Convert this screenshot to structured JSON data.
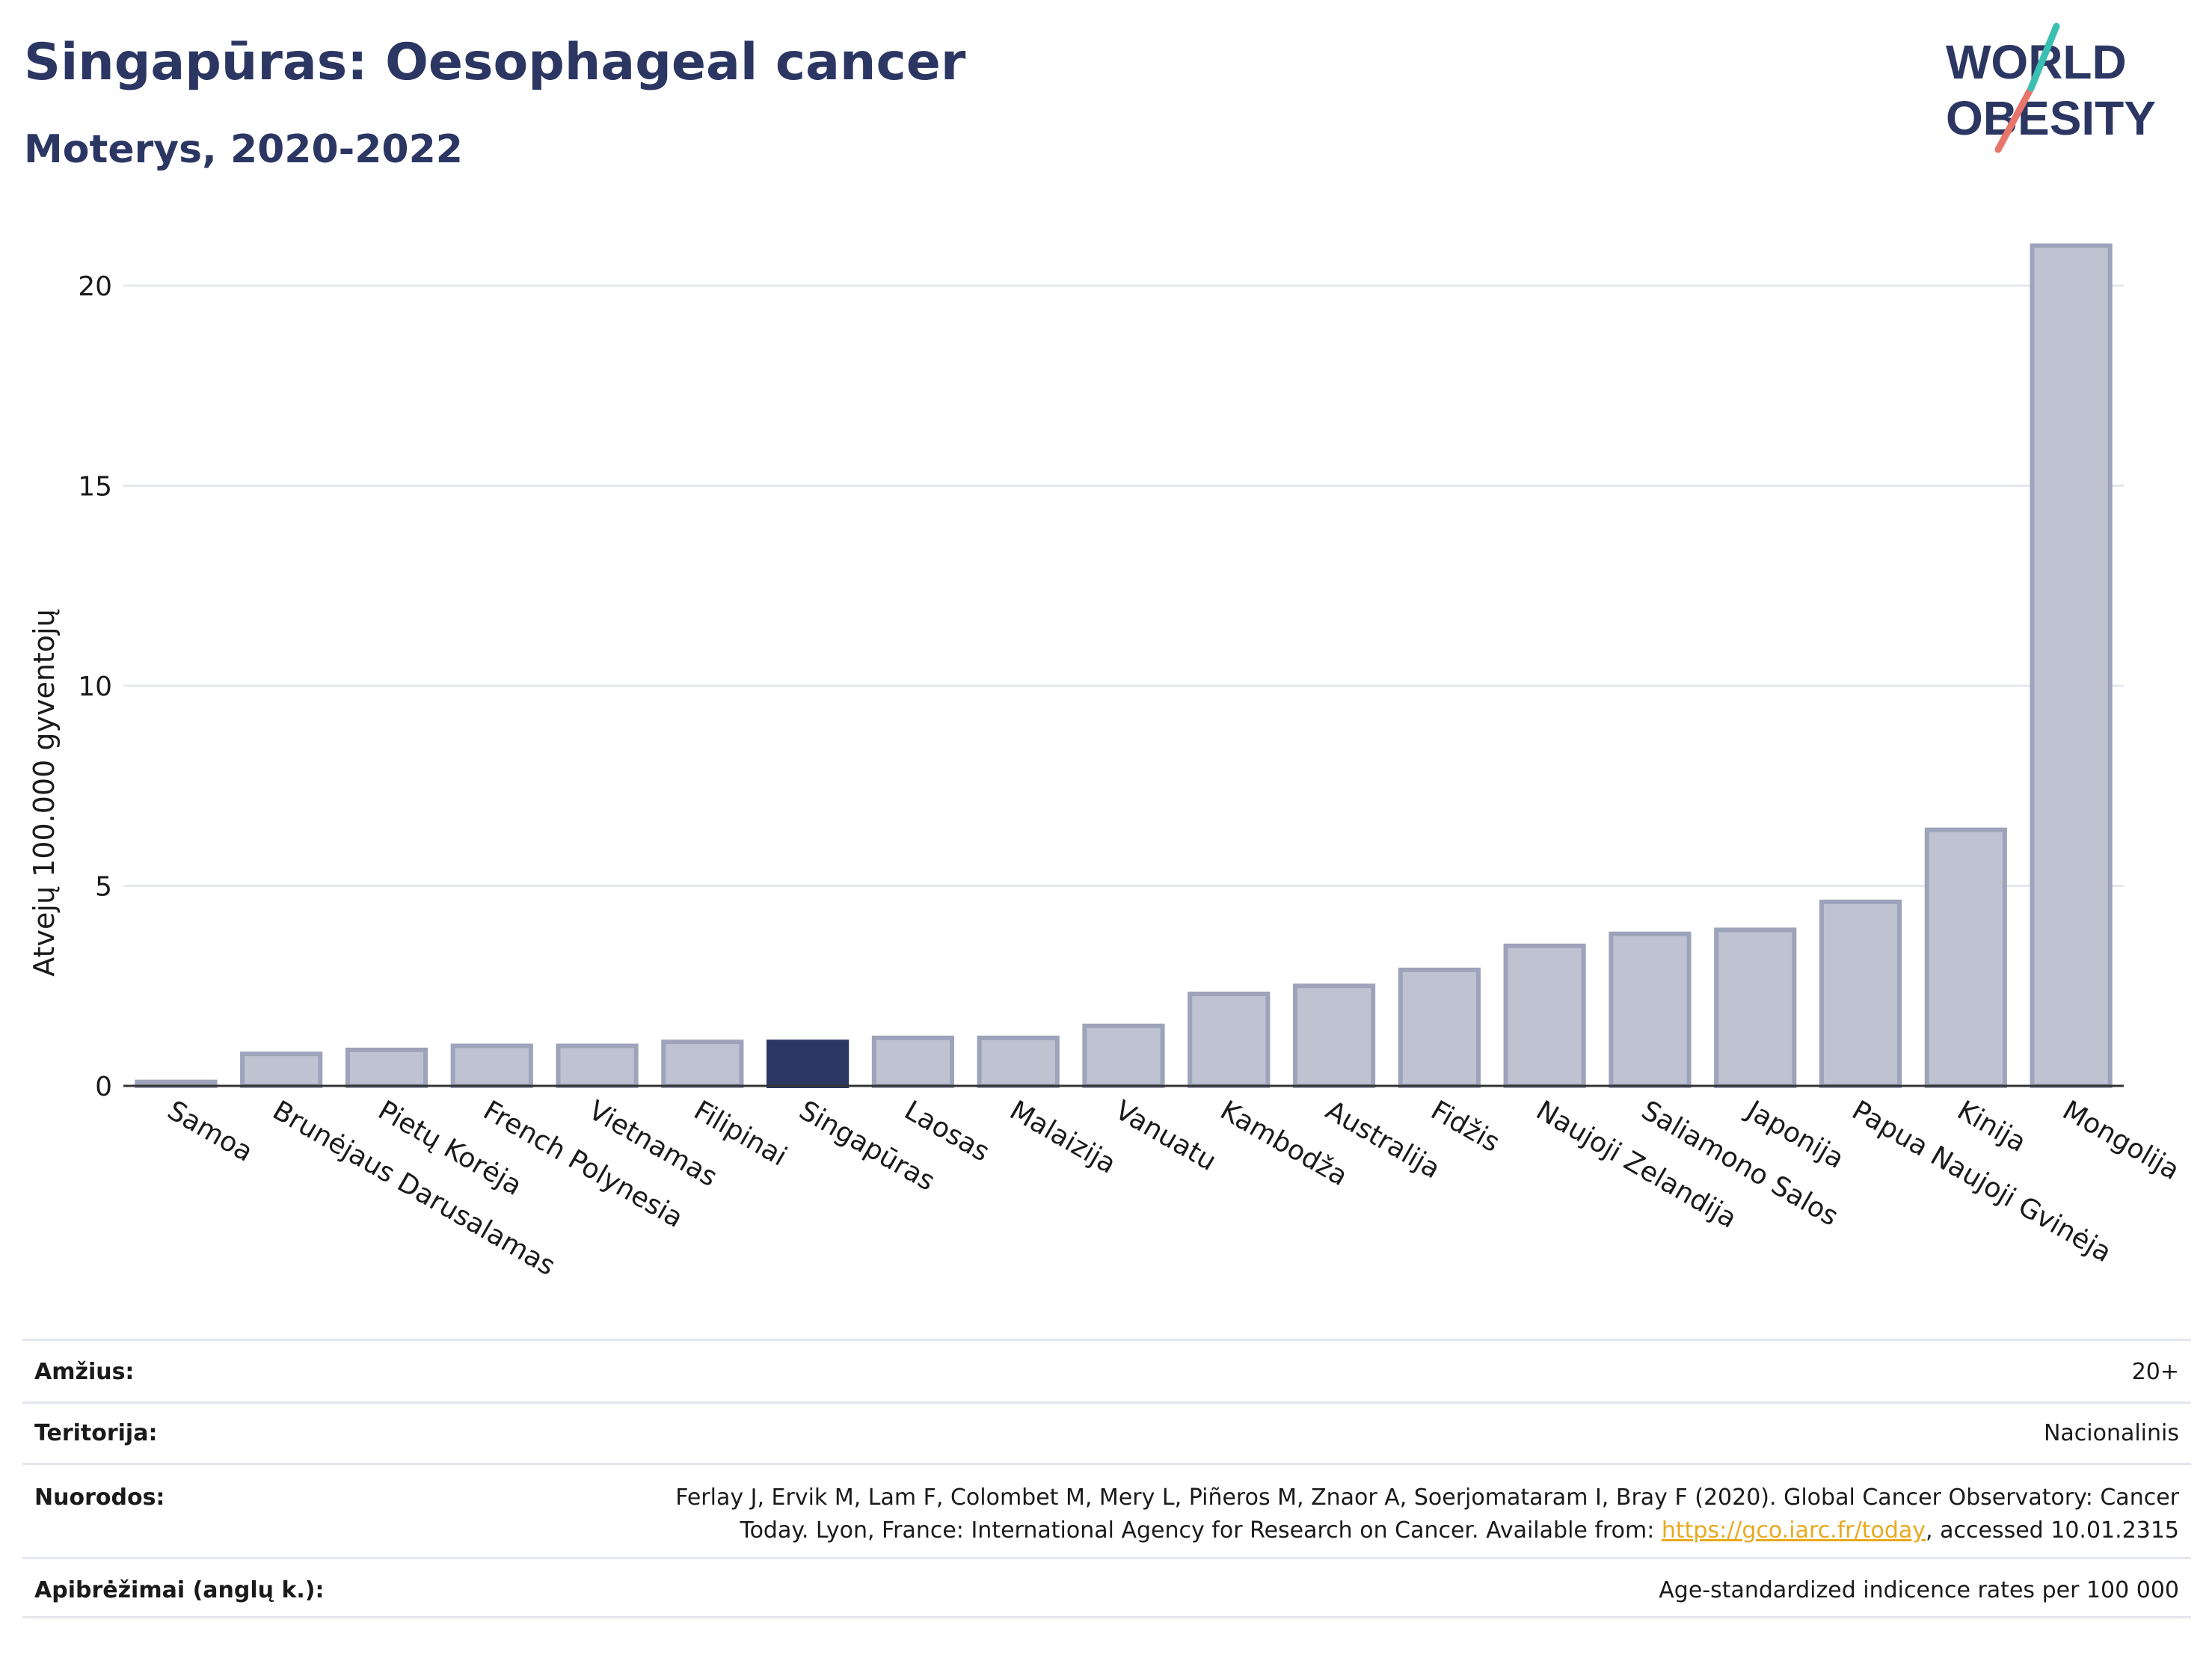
{
  "header": {
    "title": "Singapūras: Oesophageal cancer",
    "subtitle": "Moterys, 2020-2022"
  },
  "logo": {
    "line1": "WORLD",
    "line2": "OBESITY"
  },
  "colors": {
    "bar": "#bfc3d1",
    "bar_stroke": "#9da3ba",
    "highlight": "#2b3663",
    "title": "#2b3663"
  },
  "chart_data": {
    "type": "bar",
    "ylabel": "Atvejų 100.000 gyventojų",
    "ylim": [
      0,
      22
    ],
    "yticks": [
      0,
      5,
      10,
      15,
      20
    ],
    "categories": [
      "Samoa",
      "Brunėjaus Darusalamas",
      "Pietų Korėja",
      "French Polynesia",
      "Vietnamas",
      "Filipinai",
      "Singapūras",
      "Laosas",
      "Malaizija",
      "Vanuatu",
      "Kambodža",
      "Australija",
      "Fidžis",
      "Naujoji Zelandija",
      "Saliamono Salos",
      "Japonija",
      "Papua Naujoji Gvinėja",
      "Kinija",
      "Mongolija"
    ],
    "values": [
      0.1,
      0.8,
      0.9,
      1.0,
      1.0,
      1.1,
      1.1,
      1.2,
      1.2,
      1.5,
      2.3,
      2.5,
      2.9,
      3.5,
      3.8,
      3.9,
      4.6,
      6.4,
      21.0
    ],
    "highlight": "Singapūras",
    "grid": true
  },
  "meta": {
    "age_label": "Amžius:",
    "age_value": "20+",
    "territory_label": "Teritorija:",
    "territory_value": "Nacionalinis",
    "refs_label": "Nuorodos:",
    "refs_line1": "Ferlay J, Ervik M, Lam F, Colombet M, Mery L, Piñeros M, Znaor A, Soerjomataram I, Bray F (2020). Global Cancer Observatory: Cancer",
    "refs_line2_pre": "Today. Lyon, France: International Agency for Research on Cancer. Available from: ",
    "refs_link": "https://gco.iarc.fr/today",
    "refs_line2_post": ", accessed 10.01.2315",
    "defs_label": "Apibrėžimai (anglų k.):",
    "defs_value": "Age-standardized indicence rates per 100 000"
  }
}
